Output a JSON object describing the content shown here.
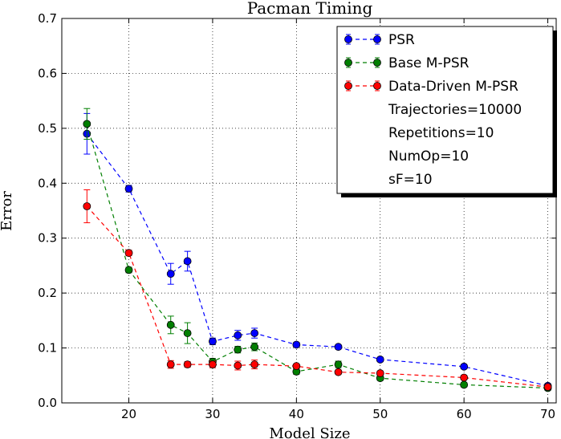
{
  "chart_data": {
    "type": "line",
    "title": "Pacman Timing",
    "xlabel": "Model Size",
    "ylabel": "Error",
    "xlim": [
      12,
      71
    ],
    "ylim": [
      0,
      0.7
    ],
    "xticks": [
      20,
      30,
      40,
      50,
      60,
      70
    ],
    "yticks": [
      0.0,
      0.1,
      0.2,
      0.3,
      0.4,
      0.5,
      0.6,
      0.7
    ],
    "grid": true,
    "legend_position": "top-right",
    "series": [
      {
        "name": "PSR",
        "color": "#0000ff",
        "x": [
          15,
          20,
          25,
          27,
          30,
          33,
          35,
          40,
          45,
          50,
          60,
          70
        ],
        "y": [
          0.49,
          0.39,
          0.235,
          0.258,
          0.112,
          0.123,
          0.127,
          0.106,
          0.102,
          0.079,
          0.066,
          0.031
        ],
        "err": [
          0.037,
          0.006,
          0.019,
          0.018,
          0.006,
          0.009,
          0.009,
          0.004,
          0.004,
          0.004,
          0.004,
          0.004
        ]
      },
      {
        "name": "Base M-PSR",
        "color": "#007f00",
        "x": [
          15,
          20,
          25,
          27,
          30,
          33,
          35,
          40,
          45,
          50,
          60,
          70
        ],
        "y": [
          0.508,
          0.242,
          0.142,
          0.127,
          0.075,
          0.097,
          0.102,
          0.057,
          0.07,
          0.045,
          0.033,
          0.027
        ],
        "err": [
          0.028,
          0.005,
          0.016,
          0.019,
          0.006,
          0.006,
          0.007,
          0.005,
          0.006,
          0.004,
          0.004,
          0.004
        ]
      },
      {
        "name": "Data-Driven M-PSR",
        "color": "#ff0000",
        "x": [
          15,
          20,
          25,
          27,
          30,
          33,
          35,
          40,
          45,
          50,
          60,
          70
        ],
        "y": [
          0.358,
          0.273,
          0.07,
          0.07,
          0.07,
          0.068,
          0.07,
          0.067,
          0.056,
          0.054,
          0.046,
          0.029
        ],
        "err": [
          0.03,
          0.005,
          0.007,
          0.005,
          0.006,
          0.008,
          0.008,
          0.004,
          0.004,
          0.004,
          0.004,
          0.004
        ]
      }
    ],
    "annotations": [
      "Trajectories=10000",
      "Repetitions=10",
      "NumOp=10",
      "sF=10"
    ]
  }
}
